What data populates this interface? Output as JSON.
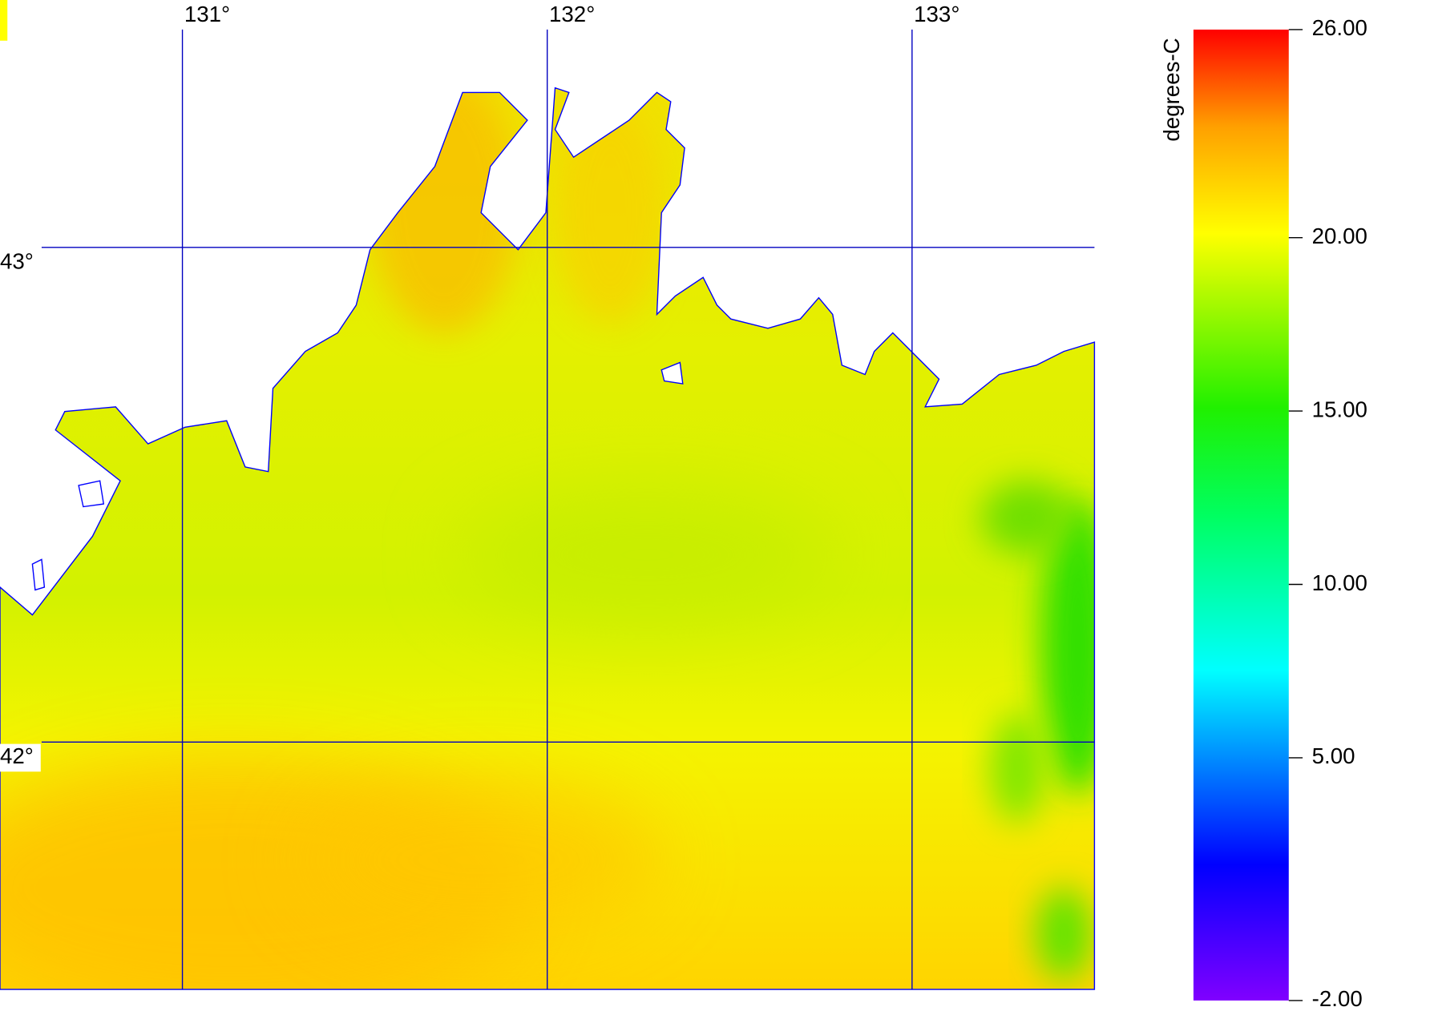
{
  "map": {
    "xlim": [
      130.5,
      133.5
    ],
    "ylim": [
      41.5,
      43.5
    ],
    "lon_ticks": [
      {
        "value": 131,
        "label": "131°"
      },
      {
        "value": 132,
        "label": "132°"
      },
      {
        "value": 133,
        "label": "133°"
      }
    ],
    "lat_ticks": [
      {
        "value": 43,
        "label": "43°"
      },
      {
        "value": 42,
        "label": "42°"
      }
    ]
  },
  "colorbar": {
    "label": "degrees-C",
    "lim": [
      -2,
      26
    ],
    "ticks": [
      {
        "value": 26,
        "label": "26.00"
      },
      {
        "value": 20,
        "label": "20.00"
      },
      {
        "value": 15,
        "label": "15.00"
      },
      {
        "value": 10,
        "label": "10.00"
      },
      {
        "value": 5,
        "label": "5.00"
      },
      {
        "value": -2,
        "label": "-2.00"
      }
    ]
  }
}
